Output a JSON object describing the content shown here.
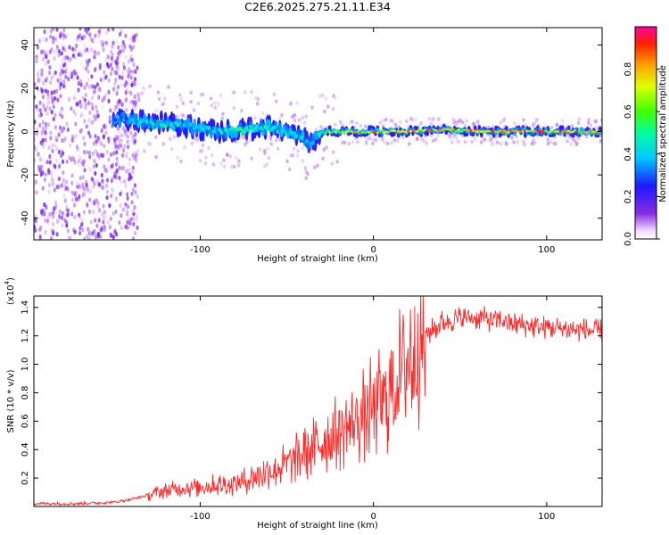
{
  "title": "C2E6.2025.275.21.11.E34",
  "chart_data": [
    {
      "type": "heatmap",
      "xlabel": "Height of straight line (km)",
      "ylabel": "Frequency (Hz)",
      "xlim": [
        -196,
        132
      ],
      "ylim": [
        -50,
        48
      ],
      "xticks": [
        "-100",
        "0",
        "100"
      ],
      "yticks": [
        "-40",
        "-20",
        "0",
        "20",
        "40"
      ],
      "colorbar": {
        "label": "Normalized spectral amplitude",
        "range": [
          0,
          1
        ],
        "ticks": [
          "0.0",
          "0.2",
          "0.4",
          "0.6",
          "0.8"
        ]
      },
      "ridge": {
        "height_km": [
          -150,
          -130,
          -110,
          -90,
          -75,
          -60,
          -45,
          -35,
          -30,
          -20,
          0,
          20,
          40,
          60,
          80,
          100,
          132
        ],
        "freq_hz": [
          6,
          4,
          3,
          0,
          1,
          2,
          -2,
          -5,
          0,
          0,
          0,
          0,
          1,
          0,
          0,
          0,
          0
        ],
        "peak_amplitude": [
          0.4,
          0.5,
          0.55,
          0.5,
          0.55,
          0.55,
          0.5,
          0.45,
          0.6,
          0.8,
          0.95,
          0.95,
          0.9,
          0.95,
          0.95,
          0.95,
          0.9
        ]
      }
    },
    {
      "type": "line",
      "xlabel": "Height of straight line (km)",
      "ylabel": "SNR (10 * v/v)",
      "scale_label": "(x10",
      "scale_exponent": "4",
      "xlim": [
        -196,
        132
      ],
      "ylim": [
        0,
        1.48
      ],
      "xticks": [
        "-100",
        "0",
        "100"
      ],
      "yticks": [
        "0.2",
        "0.4",
        "0.6",
        "0.8",
        "1.0",
        "1.2",
        "1.4"
      ],
      "color": "#ff2a2a",
      "series": [
        {
          "name": "SNR",
          "x": [
            -196,
            -170,
            -150,
            -140,
            -130,
            -120,
            -110,
            -100,
            -90,
            -80,
            -70,
            -60,
            -50,
            -40,
            -30,
            -20,
            -10,
            0,
            10,
            20,
            30,
            40,
            50,
            60,
            70,
            80,
            90,
            100,
            110,
            120,
            132
          ],
          "y": [
            0.02,
            0.02,
            0.03,
            0.05,
            0.08,
            0.11,
            0.13,
            0.14,
            0.15,
            0.16,
            0.2,
            0.25,
            0.3,
            0.38,
            0.45,
            0.52,
            0.6,
            0.7,
            0.8,
            1.05,
            1.2,
            1.3,
            1.32,
            1.33,
            1.31,
            1.29,
            1.27,
            1.26,
            1.25,
            1.24,
            1.23
          ]
        }
      ]
    }
  ]
}
